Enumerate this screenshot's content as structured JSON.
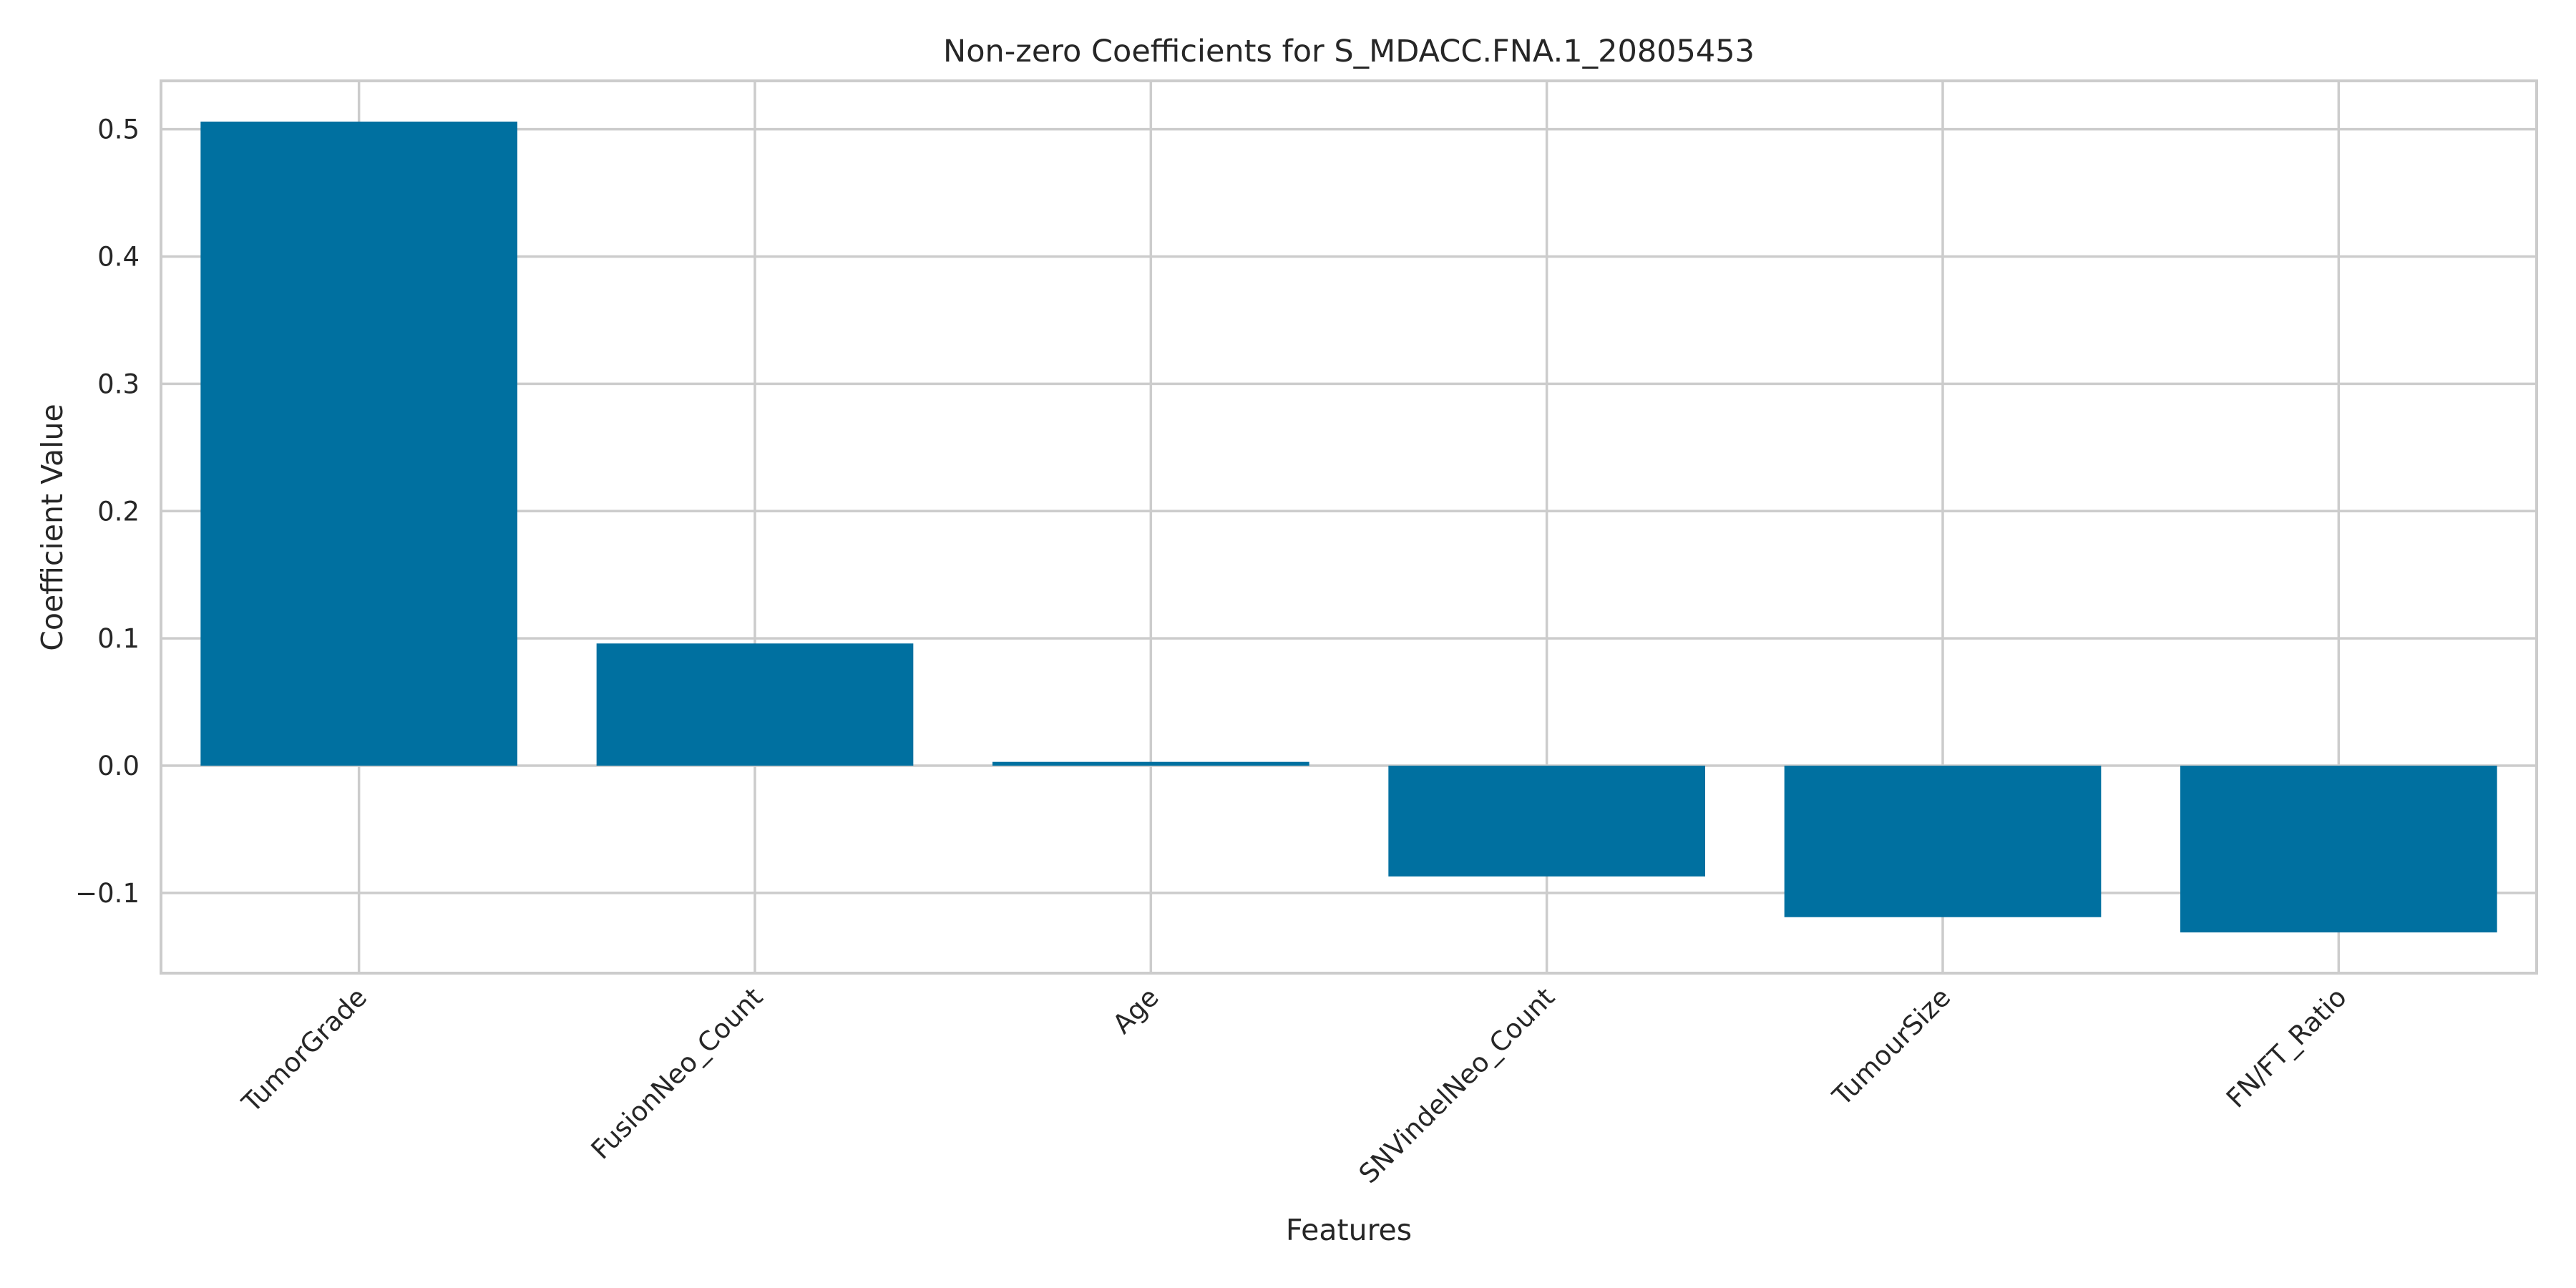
{
  "chart_data": {
    "type": "bar",
    "title": "Non-zero Coefficients for S_MDACC.FNA.1_20805453",
    "xlabel": "Features",
    "ylabel": "Coefficient Value",
    "categories": [
      "TumorGrade",
      "FusionNeo_Count",
      "Age",
      "SNVindelNeo_Count",
      "TumourSize",
      "FN/FT_Ratio"
    ],
    "values": [
      0.506,
      0.096,
      0.003,
      -0.087,
      -0.119,
      -0.131
    ],
    "ylim": [
      -0.163,
      0.538
    ],
    "yticks": [
      -0.1,
      0.0,
      0.1,
      0.2,
      0.3,
      0.4,
      0.5
    ],
    "ytick_labels": [
      "−0.1",
      "0.0",
      "0.1",
      "0.2",
      "0.3",
      "0.4",
      "0.5"
    ],
    "grid": true,
    "bar_color": "#0070a0",
    "grid_color": "#cccccc"
  }
}
